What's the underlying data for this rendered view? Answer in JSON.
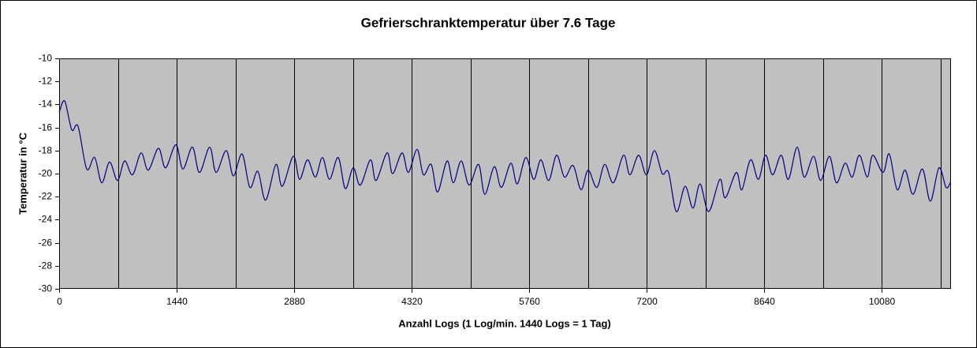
{
  "chart_data": {
    "type": "line",
    "title": "Gefrierschranktemperatur über 7.6 Tage",
    "xlabel": "Anzahl Logs (1 Log/min. 1440 Logs = 1 Tag)",
    "ylabel": "Temperatur in °C",
    "xlim": [
      0,
      10930
    ],
    "ylim": [
      -30,
      -10
    ],
    "xticks": [
      0,
      1440,
      2880,
      4320,
      5760,
      7200,
      8640,
      10080
    ],
    "xgrid": [
      720,
      1440,
      2160,
      2880,
      3600,
      4320,
      5040,
      5760,
      6480,
      7200,
      7920,
      8640,
      9360,
      10080,
      10800
    ],
    "yticks": [
      -30,
      -28,
      -26,
      -24,
      -22,
      -20,
      -18,
      -16,
      -14,
      -12,
      -10
    ],
    "x": [
      0,
      68,
      155,
      232,
      338,
      435,
      522,
      618,
      715,
      802,
      899,
      1005,
      1092,
      1217,
      1304,
      1430,
      1517,
      1633,
      1720,
      1845,
      1923,
      2048,
      2135,
      2242,
      2338,
      2435,
      2531,
      2657,
      2734,
      2870,
      2947,
      3044,
      3140,
      3227,
      3314,
      3420,
      3507,
      3604,
      3691,
      3816,
      3884,
      4019,
      4087,
      4203,
      4280,
      4387,
      4464,
      4560,
      4638,
      4754,
      4831,
      4928,
      5024,
      5140,
      5217,
      5333,
      5420,
      5536,
      5614,
      5720,
      5817,
      5904,
      6000,
      6097,
      6193,
      6299,
      6396,
      6483,
      6590,
      6686,
      6792,
      6918,
      6995,
      7102,
      7198,
      7295,
      7391,
      7469,
      7565,
      7672,
      7768,
      7855,
      7961,
      8097,
      8164,
      8299,
      8367,
      8474,
      8570,
      8657,
      8744,
      8850,
      8937,
      9044,
      9131,
      9247,
      9333,
      9440,
      9527,
      9633,
      9720,
      9807,
      9904,
      9971,
      10097,
      10174,
      10271,
      10367,
      10464,
      10580,
      10677,
      10783,
      10870,
      10928
    ],
    "series": [
      {
        "color": "#000080",
        "values": [
          -14.7,
          -13.7,
          -16.2,
          -15.9,
          -19.6,
          -18.6,
          -20.8,
          -19.0,
          -20.6,
          -18.9,
          -20.1,
          -18.2,
          -19.7,
          -17.8,
          -19.5,
          -17.5,
          -19.6,
          -17.7,
          -19.9,
          -17.7,
          -19.9,
          -18.0,
          -20.2,
          -18.3,
          -21.2,
          -19.8,
          -22.3,
          -19.2,
          -21.1,
          -18.5,
          -20.5,
          -18.8,
          -20.3,
          -18.6,
          -20.5,
          -18.6,
          -21.3,
          -19.5,
          -21.0,
          -18.8,
          -20.6,
          -18.2,
          -20.0,
          -18.2,
          -19.9,
          -17.9,
          -20.1,
          -19.2,
          -21.6,
          -18.9,
          -20.8,
          -18.9,
          -21.0,
          -19.2,
          -21.8,
          -19.4,
          -21.2,
          -19.1,
          -20.9,
          -18.6,
          -20.5,
          -18.8,
          -20.6,
          -18.4,
          -20.3,
          -19.3,
          -21.4,
          -19.7,
          -21.2,
          -19.2,
          -20.8,
          -18.4,
          -20.1,
          -18.4,
          -20.1,
          -18.0,
          -20.0,
          -19.9,
          -23.3,
          -21.1,
          -23.0,
          -20.9,
          -23.3,
          -20.5,
          -22.1,
          -19.9,
          -21.4,
          -18.8,
          -20.5,
          -18.4,
          -20.1,
          -18.4,
          -20.5,
          -17.7,
          -20.3,
          -18.5,
          -20.6,
          -18.5,
          -20.8,
          -19.1,
          -20.3,
          -18.4,
          -20.3,
          -18.4,
          -19.9,
          -18.3,
          -21.4,
          -19.7,
          -21.8,
          -19.6,
          -22.4,
          -19.5,
          -21.2,
          -20.7
        ]
      }
    ],
    "background": "#c0c0c0"
  }
}
